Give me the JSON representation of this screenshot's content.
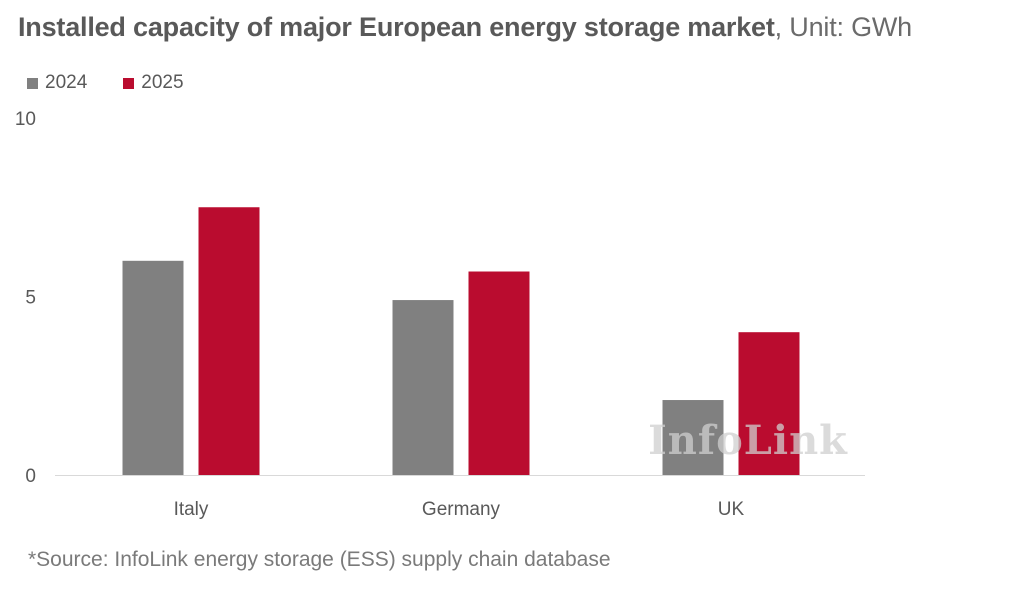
{
  "chart_data": {
    "type": "bar",
    "title": "Installed capacity of major European energy storage market",
    "unit_label": ", Unit: GWh",
    "categories": [
      "Italy",
      "Germany",
      "UK"
    ],
    "series": [
      {
        "name": "2024",
        "values": [
          6.0,
          4.9,
          2.1
        ]
      },
      {
        "name": "2025",
        "values": [
          7.5,
          5.7,
          4.0
        ]
      }
    ],
    "ylim": [
      0,
      10
    ],
    "yticks": [
      0,
      5,
      10
    ],
    "xlabel": "",
    "ylabel": "",
    "grid": false,
    "legend_position": "top-left",
    "colors": {
      "2024": "#808080",
      "2025": "#ba0c2f"
    }
  },
  "watermark": "InfoLink",
  "source": "*Source: InfoLink energy storage (ESS) supply chain database"
}
